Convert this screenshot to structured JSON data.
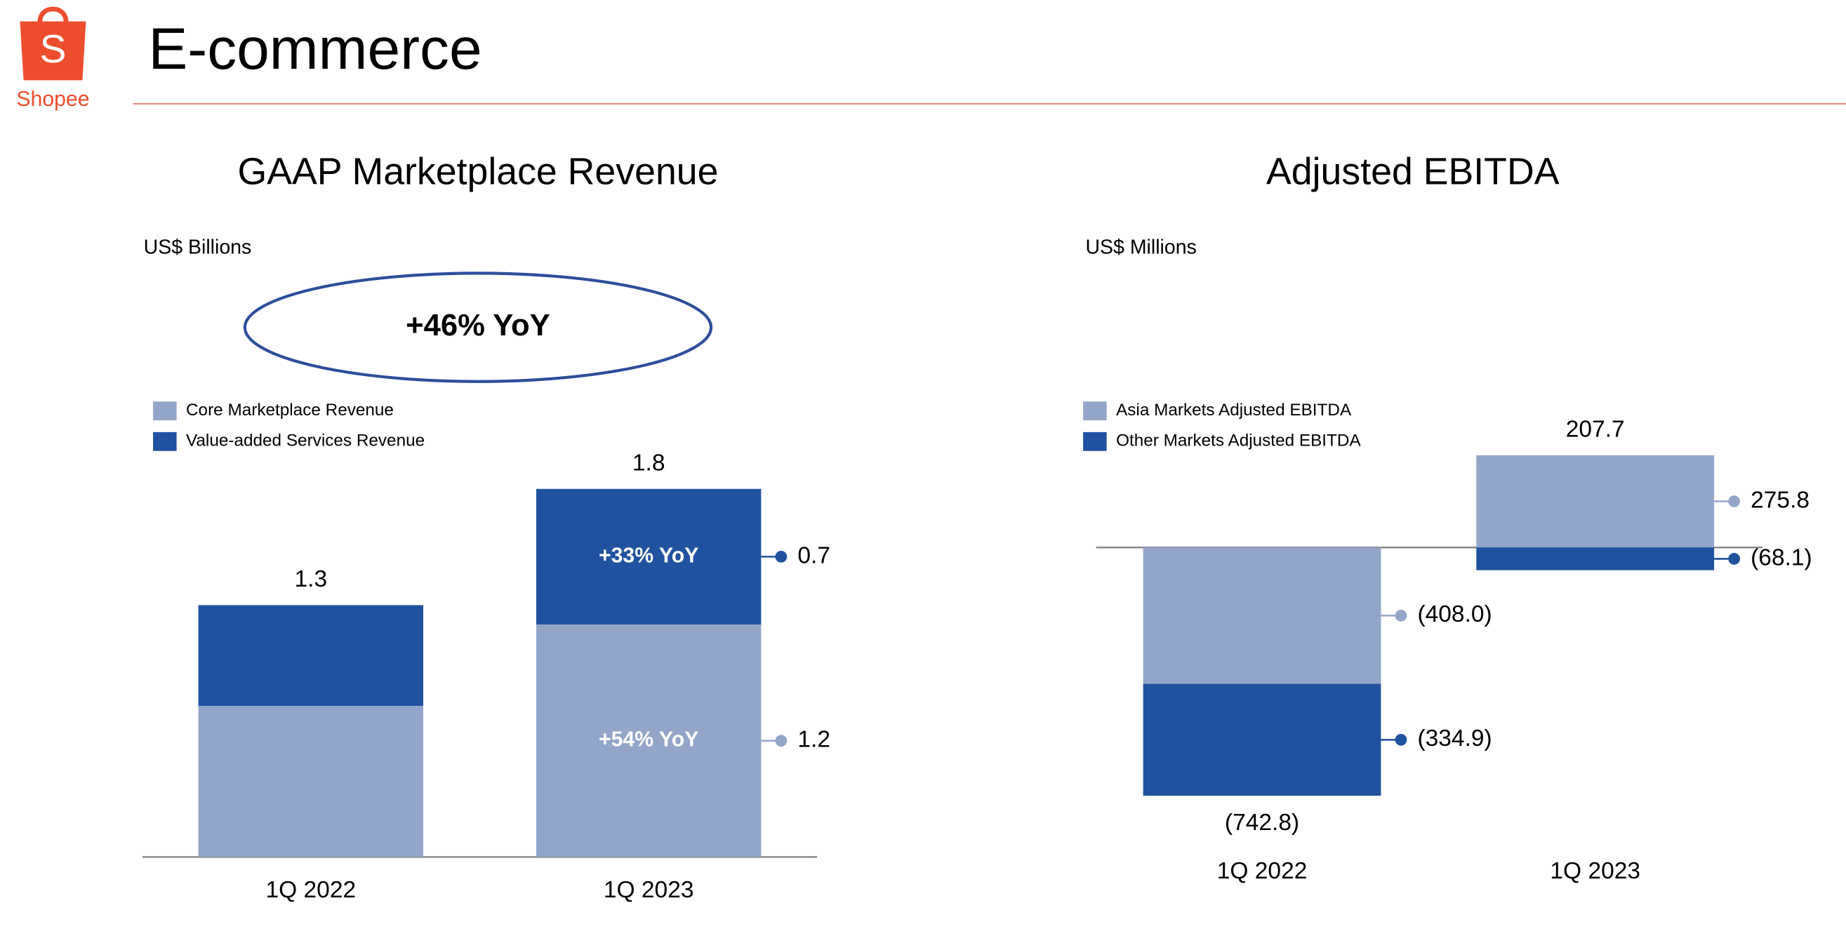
{
  "header": {
    "logo_text": "Shopee",
    "title": "E-commerce"
  },
  "chart_data": [
    {
      "type": "bar",
      "stacked": true,
      "title": "GAAP Marketplace Revenue",
      "unit_label": "US$ Billions",
      "callout": "+46% YoY",
      "categories": [
        "1Q 2022",
        "1Q 2023"
      ],
      "series": [
        {
          "name": "Core Marketplace Revenue",
          "color": "#93a6c9",
          "values": [
            0.78,
            1.2
          ],
          "value_labels": [
            null,
            "1.2"
          ],
          "annotations": [
            null,
            "+54% YoY"
          ]
        },
        {
          "name": "Value-added Services Revenue",
          "color": "#2152a0",
          "values": [
            0.52,
            0.7
          ],
          "value_labels": [
            null,
            "0.7"
          ],
          "annotations": [
            null,
            "+33% YoY"
          ]
        }
      ],
      "totals": [
        1.3,
        1.8
      ]
    },
    {
      "type": "bar",
      "stacked": true,
      "title": "Adjusted EBITDA",
      "unit_label": "US$ Millions",
      "categories": [
        "1Q 2022",
        "1Q 2023"
      ],
      "series": [
        {
          "name": "Asia Markets Adjusted EBITDA",
          "color": "#93a6c9",
          "values": [
            -408.0,
            275.8
          ],
          "value_labels": [
            "(408.0)",
            "275.8"
          ]
        },
        {
          "name": "Other Markets Adjusted EBITDA",
          "color": "#2152a0",
          "values": [
            -334.9,
            -68.1
          ],
          "value_labels": [
            "(334.9)",
            "(68.1)"
          ]
        }
      ],
      "totals": [
        -742.8,
        207.7
      ],
      "total_labels": [
        "(742.8)",
        "207.7"
      ]
    }
  ]
}
